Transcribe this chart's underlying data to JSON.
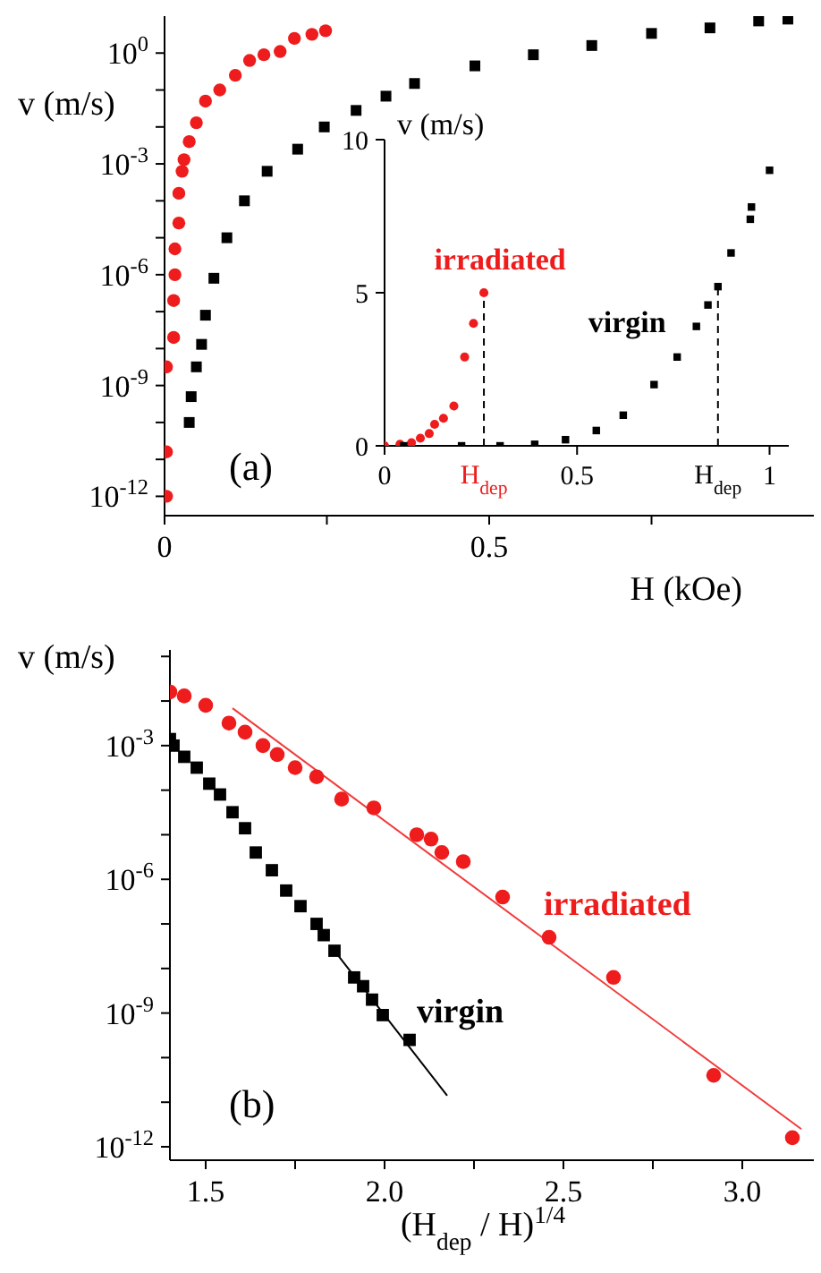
{
  "chart_data": [
    {
      "type": "scatter",
      "xlabel": "H (kOe)",
      "ylabel": "v (m/s)",
      "annotations": [
        "(a)"
      ],
      "log": "y",
      "xlim": [
        0,
        1
      ],
      "xticks": [
        0,
        {
          "value": 0.25,
          "label": null
        },
        0.5,
        {
          "value": 0.75,
          "label": null
        }
      ],
      "ylim": [
        3e-13,
        10
      ],
      "yticks": [
        {
          "value": 1,
          "label": "10$^{0}$"
        },
        {
          "value": 0.1,
          "label": null
        },
        {
          "value": 0.01,
          "label": null
        },
        {
          "value": 0.001,
          "label": "10$^{-3}$"
        },
        {
          "value": 0.0001,
          "label": null
        },
        {
          "value": 1e-05,
          "label": null
        },
        {
          "value": 1e-06,
          "label": "10$^{-6}$"
        },
        {
          "value": 1e-07,
          "label": null
        },
        {
          "value": 1e-08,
          "label": null
        },
        {
          "value": 1e-09,
          "label": "10$^{-9}$"
        },
        {
          "value": 1e-10,
          "label": null
        },
        {
          "value": 1e-11,
          "label": null
        },
        {
          "value": 1e-12,
          "label": "10$^{-12}$"
        }
      ],
      "grid": false,
      "legend": false,
      "series": [
        {
          "color": "#ee1c1c",
          "marker": "circle",
          "x": [
            0.003,
            0.003,
            0.003,
            0.014,
            0.014,
            0.016,
            0.016,
            0.022,
            0.022,
            0.027,
            0.03,
            0.038,
            0.049,
            0.063,
            0.085,
            0.109,
            0.131,
            0.153,
            0.178,
            0.2,
            0.227,
            0.248
          ],
          "values": [
            1e-12,
            1.6e-11,
            3.2e-09,
            2e-08,
            2e-07,
            1e-06,
            5e-06,
            2.5e-05,
            0.00016,
            0.00063,
            0.0013,
            0.004,
            0.013,
            0.05,
            0.1,
            0.25,
            0.63,
            0.9,
            1.1,
            2.5,
            3.2,
            4
          ]
        },
        {
          "color": "#000000",
          "marker": "square",
          "x": [
            0.038,
            0.041,
            0.049,
            0.057,
            0.063,
            0.076,
            0.096,
            0.123,
            0.158,
            0.205,
            0.246,
            0.295,
            0.341,
            0.385,
            0.478,
            0.568,
            0.658,
            0.75,
            0.84,
            0.915,
            0.96
          ],
          "values": [
            1e-10,
            5e-10,
            3.2e-09,
            1.3e-08,
            8e-08,
            8e-07,
            1e-05,
            0.0001,
            0.00063,
            0.0025,
            0.01,
            0.028,
            0.068,
            0.15,
            0.45,
            0.9,
            1.6,
            3.4,
            4.8,
            7.4,
            8.3
          ]
        }
      ]
    },
    {
      "type": "scatter",
      "ylabel": "v (m/s)",
      "xlim": [
        0,
        1.05
      ],
      "xticks": [
        0,
        0.5,
        1
      ],
      "ylim": [
        0,
        10
      ],
      "yticks": [
        0,
        5,
        10
      ],
      "grid": false,
      "legend": false,
      "ref_lines": [
        {
          "axis": "x",
          "value": 0.258,
          "label": "H$_{dep}$",
          "line_style": "dashed"
        },
        {
          "axis": "x",
          "value": 0.866,
          "label": "H$_{dep}$",
          "line_style": "dashed"
        }
      ],
      "series": [
        {
          "name": "irradiated",
          "color": "#ee1c1c",
          "marker": "circle",
          "x": [
            0,
            0.04,
            0.07,
            0.093,
            0.116,
            0.13,
            0.153,
            0.18,
            0.208,
            0.231,
            0.258
          ],
          "values": [
            0,
            0.05,
            0.1,
            0.25,
            0.4,
            0.7,
            0.9,
            1.3,
            2.9,
            4.0,
            5.0
          ]
        },
        {
          "name": "virgin",
          "color": "#000000",
          "marker": "square",
          "x": [
            0.05,
            0.2,
            0.3,
            0.39,
            0.47,
            0.55,
            0.62,
            0.7,
            0.76,
            0.81,
            0.84,
            0.866,
            0.9,
            0.95,
            0.953,
            1.0
          ],
          "values": [
            0,
            0,
            0,
            0.05,
            0.2,
            0.5,
            1.0,
            2.0,
            2.9,
            3.9,
            4.6,
            5.2,
            6.3,
            7.4,
            7.8,
            9.0
          ]
        }
      ]
    },
    {
      "type": "scatter",
      "xlabel": "(H$_{dep}$ / H)$^{1/4}$",
      "ylabel": "v (m/s)",
      "annotations": [
        "(b)"
      ],
      "log": "y",
      "xlim": [
        1.4,
        3.2
      ],
      "xticks": [
        {
          "value": 1.5,
          "label": "1.5"
        },
        {
          "value": 1.75,
          "label": null
        },
        {
          "value": 2,
          "label": "2.0"
        },
        {
          "value": 2.25,
          "label": null
        },
        {
          "value": 2.5,
          "label": "2.5"
        },
        {
          "value": 2.75,
          "label": null
        },
        {
          "value": 3,
          "label": "3.0"
        }
      ],
      "ylim": [
        5e-13,
        0.14
      ],
      "yticks": [
        {
          "value": 0.1,
          "label": null
        },
        {
          "value": 0.01,
          "label": null
        },
        {
          "value": 0.001,
          "label": "10$^{-3}$"
        },
        {
          "value": 0.0001,
          "label": null
        },
        {
          "value": 1e-05,
          "label": null
        },
        {
          "value": 1e-06,
          "label": "10$^{-6}$"
        },
        {
          "value": 1e-07,
          "label": null
        },
        {
          "value": 1e-08,
          "label": null
        },
        {
          "value": 1e-09,
          "label": "10$^{-9}$"
        },
        {
          "value": 1e-10,
          "label": null
        },
        {
          "value": 1e-11,
          "label": null
        },
        {
          "value": 1e-12,
          "label": "10$^{-12}$"
        }
      ],
      "grid": false,
      "legend": false,
      "series": [
        {
          "name": "irradiated",
          "color": "#ee1c1c",
          "marker": "circle",
          "x": [
            1.4,
            1.44,
            1.5,
            1.565,
            1.61,
            1.66,
            1.7,
            1.75,
            1.81,
            1.88,
            1.97,
            2.09,
            2.13,
            2.16,
            2.22,
            2.33,
            2.46,
            2.64,
            2.92,
            3.14
          ],
          "values": [
            0.016,
            0.013,
            0.008,
            0.0032,
            0.002,
            0.001,
            0.00063,
            0.00032,
            0.0002,
            6.3e-05,
            4e-05,
            1e-05,
            8e-06,
            4e-06,
            2.5e-06,
            4e-07,
            5e-08,
            6.3e-09,
            4e-11,
            1.6e-12
          ]
        },
        {
          "type": "line",
          "color": "#f03c3c",
          "marker": "none",
          "line_style": "solid",
          "x": [
            1.575,
            3.165
          ],
          "values": [
            0.0069,
            2.5e-12
          ]
        },
        {
          "name": "virgin",
          "color": "#000000",
          "marker": "square",
          "x": [
            1.4,
            1.41,
            1.44,
            1.475,
            1.51,
            1.54,
            1.575,
            1.61,
            1.64,
            1.685,
            1.725,
            1.765,
            1.81,
            1.83,
            1.86,
            1.915,
            1.94,
            1.965,
            1.995,
            2.07
          ],
          "values": [
            0.0014,
            0.001,
            0.00056,
            0.00032,
            0.00014,
            8e-05,
            3.2e-05,
            1.4e-05,
            4e-06,
            1.6e-06,
            5.6e-07,
            2.5e-07,
            1e-07,
            5.6e-08,
            2.5e-08,
            6.3e-09,
            4e-09,
            2e-09,
            9e-10,
            2.5e-10
          ]
        },
        {
          "type": "line",
          "color": "#000000",
          "marker": "none",
          "line_style": "solid",
          "x": [
            1.86,
            2.175
          ],
          "values": [
            2.5e-08,
            1.4e-11
          ]
        }
      ]
    }
  ]
}
